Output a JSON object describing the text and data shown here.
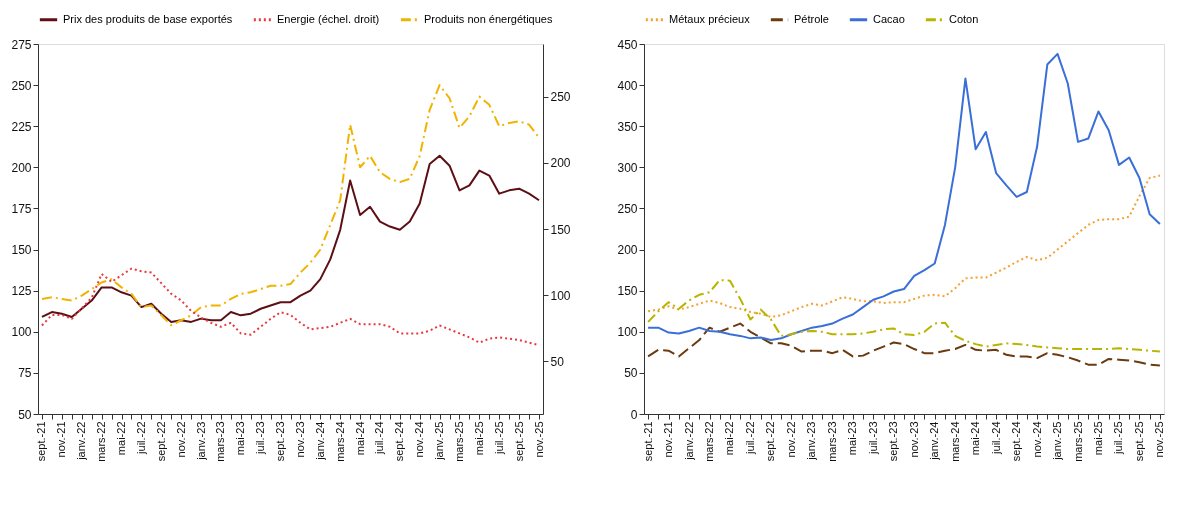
{
  "chart_data": [
    {
      "type": "line",
      "legend": "top",
      "categories": [
        "sept.-21",
        null,
        "nov.-21",
        null,
        "janv.-22",
        null,
        "mars-22",
        null,
        "mai-22",
        null,
        "juil.-22",
        null,
        "sept.-22",
        null,
        "nov.-22",
        null,
        "janv.-23",
        null,
        "mars-23",
        null,
        "mai-23",
        null,
        "juil.-23",
        null,
        "sept.-23",
        null,
        "nov.-23",
        null,
        "janv.-24",
        null,
        "mars-24",
        null,
        "mai-24",
        null,
        "juil.-24",
        null,
        "sept.-24",
        null,
        "nov.-24",
        null,
        "janv.-25",
        null,
        "mars-25",
        null,
        "mai-25",
        null,
        "juil.-25",
        null,
        "sept.-25",
        null,
        "nov.-25"
      ],
      "ylim": [
        50,
        275
      ],
      "yticks": [
        50,
        75,
        100,
        125,
        150,
        175,
        200,
        225,
        250,
        275
      ],
      "y2lim": [
        10,
        290
      ],
      "y2ticks": [
        50,
        100,
        150,
        200,
        250
      ],
      "series": [
        {
          "name": "Prix des produits de base exportés",
          "color": "#5c0f14",
          "line_style": "solid",
          "values": [
            109,
            112,
            111,
            109,
            114,
            119,
            127,
            127,
            124,
            122,
            115,
            117,
            111,
            106,
            107,
            106,
            108,
            107,
            107,
            112,
            110,
            111,
            114,
            116,
            118,
            118,
            122,
            125,
            132,
            144,
            162,
            192,
            171,
            176,
            167,
            164,
            162,
            167,
            178,
            202,
            207,
            201,
            186,
            189,
            198,
            195,
            184,
            186,
            187,
            184,
            180
          ]
        },
        {
          "name": "Energie (échel. droit)",
          "color": "#e8383d",
          "line_style": "dotted",
          "axis": "y2",
          "values": [
            77,
            85,
            85,
            82,
            90,
            98,
            116,
            110,
            115,
            120,
            118,
            117,
            109,
            101,
            96,
            88,
            83,
            79,
            76,
            79,
            71,
            70,
            76,
            82,
            87,
            85,
            79,
            74,
            75,
            76,
            79,
            82,
            78,
            78,
            78,
            76,
            71,
            71,
            71,
            73,
            77,
            74,
            71,
            68,
            64,
            67,
            68,
            67,
            66,
            64,
            62
          ]
        },
        {
          "name": "Produits  non énergétiques",
          "color": "#f0b400",
          "line_style": "dashdot",
          "values": [
            120,
            121,
            120,
            119,
            122,
            126,
            130,
            132,
            127,
            123,
            115,
            116,
            110,
            104,
            107,
            110,
            115,
            116,
            116,
            120,
            123,
            124,
            126,
            128,
            128,
            129,
            136,
            142,
            150,
            165,
            180,
            226,
            200,
            207,
            197,
            193,
            191,
            193,
            207,
            235,
            250,
            242,
            224,
            231,
            243,
            238,
            225,
            227,
            228,
            226,
            218
          ]
        }
      ]
    },
    {
      "type": "line",
      "legend": "top",
      "categories": [
        "sept.-21",
        null,
        "nov.-21",
        null,
        "janv.-22",
        null,
        "mars-22",
        null,
        "mai-22",
        null,
        "juil.-22",
        null,
        "sept.-22",
        null,
        "nov.-22",
        null,
        "janv.-23",
        null,
        "mars-23",
        null,
        "mai-23",
        null,
        "juil.-23",
        null,
        "sept.-23",
        null,
        "nov.-23",
        null,
        "janv.-24",
        null,
        "mars-24",
        null,
        "mai-24",
        null,
        "juil.-24",
        null,
        "sept.-24",
        null,
        "nov.-24",
        null,
        "janv.-25",
        null,
        "mars-25",
        null,
        "mai-25",
        null,
        "juil.-25",
        null,
        "sept.-25",
        null,
        "nov.-25"
      ],
      "ylim": [
        0,
        450
      ],
      "yticks": [
        0,
        50,
        100,
        150,
        200,
        250,
        300,
        350,
        400,
        450
      ],
      "series": [
        {
          "name": "Métaux précieux",
          "color": "#f5a030",
          "line_style": "dotted",
          "values": [
            125,
            127,
            131,
            127,
            130,
            134,
            138,
            135,
            130,
            128,
            124,
            122,
            118,
            120,
            125,
            130,
            134,
            132,
            137,
            142,
            140,
            137,
            137,
            135,
            136,
            136,
            140,
            144,
            145,
            143,
            153,
            165,
            166,
            166,
            172,
            178,
            185,
            191,
            187,
            190,
            200,
            210,
            220,
            230,
            236,
            237,
            237,
            240,
            265,
            287,
            290
          ]
        },
        {
          "name": "Pétrole",
          "color": "#6b3a10",
          "line_style": "dashed",
          "values": [
            70,
            78,
            77,
            70,
            80,
            90,
            105,
            100,
            105,
            110,
            100,
            93,
            86,
            86,
            83,
            76,
            77,
            77,
            74,
            78,
            70,
            71,
            77,
            82,
            87,
            85,
            79,
            74,
            74,
            77,
            79,
            84,
            78,
            77,
            78,
            72,
            70,
            70,
            68,
            74,
            72,
            69,
            65,
            60,
            60,
            67,
            66,
            65,
            63,
            60,
            59
          ]
        },
        {
          "name": "Cacao",
          "color": "#3a6fd8",
          "line_style": "solid",
          "values": [
            105,
            105,
            99,
            98,
            101,
            105,
            101,
            100,
            97,
            95,
            92,
            93,
            90,
            92,
            97,
            101,
            105,
            107,
            110,
            116,
            121,
            130,
            139,
            143,
            149,
            152,
            168,
            175,
            183,
            230,
            300,
            408,
            322,
            343,
            293,
            278,
            264,
            270,
            325,
            425,
            438,
            402,
            331,
            335,
            368,
            345,
            303,
            312,
            287,
            243,
            231
          ]
        },
        {
          "name": "Coton",
          "color": "#b8b400",
          "line_style": "dashdot",
          "values": [
            112,
            125,
            136,
            128,
            138,
            145,
            148,
            163,
            162,
            140,
            115,
            127,
            115,
            95,
            97,
            100,
            101,
            100,
            97,
            97,
            97,
            98,
            100,
            103,
            104,
            97,
            96,
            100,
            110,
            111,
            95,
            89,
            85,
            82,
            84,
            86,
            85,
            84,
            82,
            81,
            80,
            79,
            79,
            79,
            79,
            79,
            80,
            79,
            78,
            77,
            76
          ]
        }
      ]
    }
  ]
}
